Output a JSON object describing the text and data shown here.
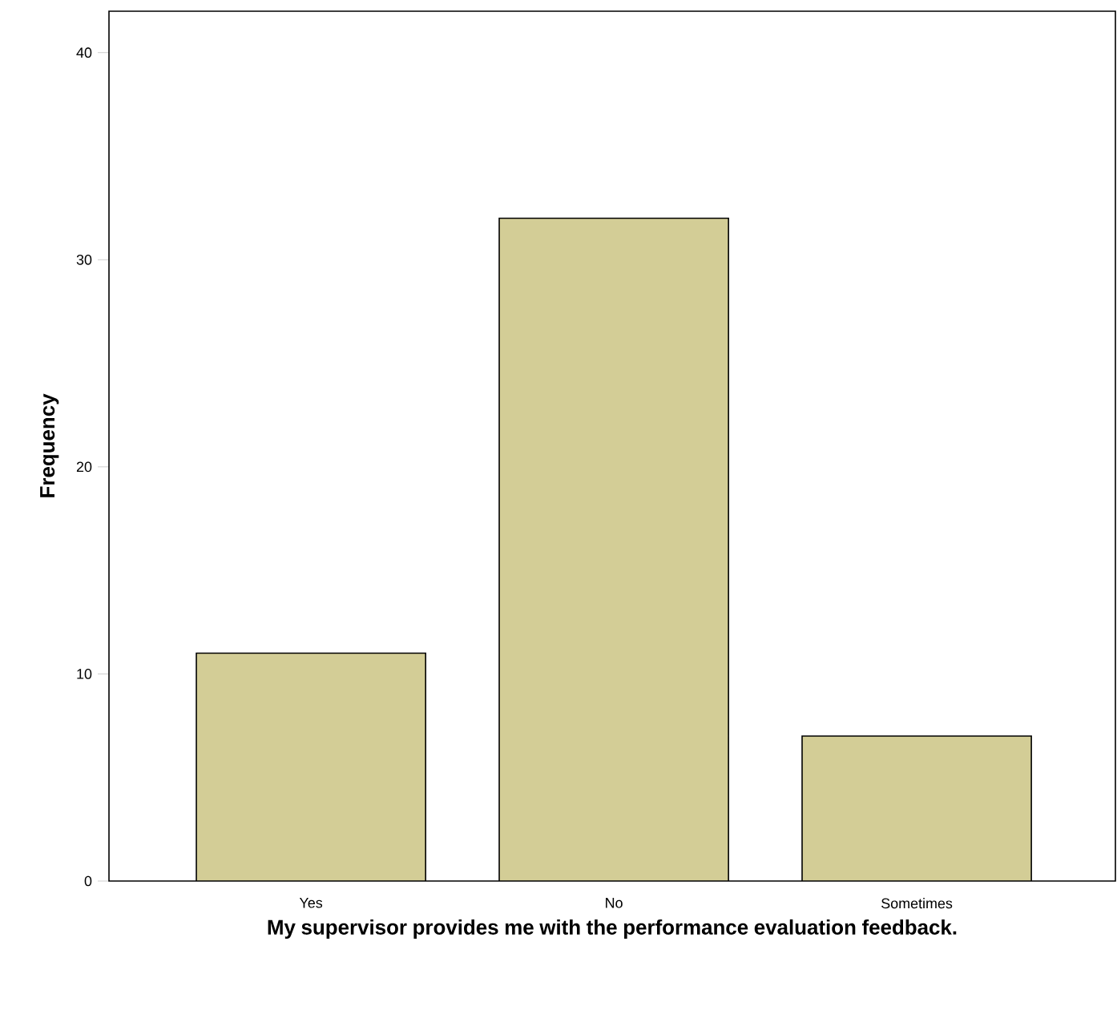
{
  "chart_data": {
    "type": "bar",
    "xlabel": "My supervisor provides me with the performance evaluation feedback.",
    "ylabel": "Frequency",
    "categories": [
      "Yes",
      "No",
      "Sometimes"
    ],
    "values": [
      11,
      32,
      7
    ],
    "color": "#d3cd96",
    "ylim": [
      0,
      42
    ],
    "yticks": [
      0,
      10,
      20,
      30,
      40
    ],
    "grid": false
  }
}
